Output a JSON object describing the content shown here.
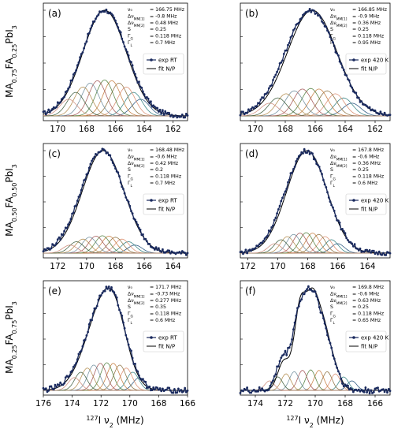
{
  "chart_data": [
    {
      "type": "line",
      "panel_label": "(a)",
      "xlim": [
        171,
        161
      ],
      "ticks": [
        170,
        168,
        166,
        164,
        162
      ],
      "params": [
        {
          "sym": "ν₀",
          "val": "= 166.75 MHz"
        },
        {
          "sym": "Δν_MM[1]",
          "val": "= -0.8 MHz"
        },
        {
          "sym": "Δν_MM[2]",
          "val": "= 0.48 MHz"
        },
        {
          "sym": "S",
          "val": "= 0.25"
        },
        {
          "sym": "Γ_G",
          "val": "= 0.118 MHz"
        },
        {
          "sym": "Γ_L",
          "val": "= 0.7 MHz"
        }
      ],
      "legend": {
        "exp": "exp RT",
        "fit": "fit N/P"
      },
      "series": [
        {
          "name": "exp RT",
          "kind": "points",
          "center": 167.0,
          "peaks": [
            [
              166.75,
              1.0,
              1.55
            ]
          ],
          "noise": 0.02
        },
        {
          "name": "fit N/P",
          "kind": "fit",
          "center": 167.0,
          "peaks": [
            [
              166.75,
              1.0,
              1.5
            ]
          ]
        }
      ],
      "components": {
        "center": 166.75,
        "height": 0.34,
        "width": 0.6,
        "spacing": 0.5,
        "count": 11
      }
    },
    {
      "type": "line",
      "panel_label": "(b)",
      "xlim": [
        171,
        161
      ],
      "ticks": [
        170,
        168,
        166,
        164,
        162
      ],
      "params": [
        {
          "sym": "ν₀",
          "val": "= 166.85 MHz"
        },
        {
          "sym": "Δν_MM[1]",
          "val": "= -0.9 MHz"
        },
        {
          "sym": "Δν_MM[2]",
          "val": "= 0.36 MHz"
        },
        {
          "sym": "S",
          "val": "= 0.25"
        },
        {
          "sym": "Γ_G",
          "val": "= 0.118 MHz"
        },
        {
          "sym": "Γ_L",
          "val": "= 0.95 MHz"
        }
      ],
      "legend": {
        "exp": "exp 420 K",
        "fit": "fit N/P"
      },
      "series": [
        {
          "name": "exp 420 K",
          "kind": "points",
          "center": 166.3,
          "peaks": [
            [
              166.3,
              1.0,
              1.7
            ]
          ],
          "noise": 0.02
        },
        {
          "name": "fit N/P",
          "kind": "fit",
          "center": 166.3,
          "peaks": [
            [
              166.2,
              1.0,
              1.65
            ]
          ]
        }
      ],
      "components": {
        "center": 166.3,
        "height": 0.26,
        "width": 0.6,
        "spacing": 0.55,
        "count": 11
      }
    },
    {
      "type": "line",
      "panel_label": "(c)",
      "xlim": [
        173,
        163
      ],
      "ticks": [
        172,
        170,
        168,
        166,
        164
      ],
      "params": [
        {
          "sym": "ν₀",
          "val": "= 168.48 MHz"
        },
        {
          "sym": "Δν_MM[1]",
          "val": "= -0.6 MHz"
        },
        {
          "sym": "Δν_MM[2]",
          "val": "= 0.42 MHz"
        },
        {
          "sym": "S",
          "val": "= 0.2"
        },
        {
          "sym": "Γ_G",
          "val": "= 0.118 MHz"
        },
        {
          "sym": "Γ_L",
          "val": "= 0.7 MHz"
        }
      ],
      "legend": {
        "exp": "exp RT",
        "fit": "fit N/P"
      },
      "series": [
        {
          "name": "exp RT",
          "kind": "points",
          "center": 168.9,
          "peaks": [
            [
              168.9,
              1.0,
              1.5
            ]
          ],
          "noise": 0.02
        },
        {
          "name": "fit N/P",
          "kind": "fit",
          "center": 168.9,
          "peaks": [
            [
              168.85,
              1.0,
              1.45
            ]
          ]
        }
      ],
      "components": {
        "center": 168.9,
        "height": 0.17,
        "width": 0.5,
        "spacing": 0.45,
        "count": 11
      }
    },
    {
      "type": "line",
      "panel_label": "(d)",
      "xlim": [
        172.5,
        162.5
      ],
      "ticks": [
        172,
        170,
        168,
        166,
        164
      ],
      "params": [
        {
          "sym": "ν₀",
          "val": "= 167.8 MHz"
        },
        {
          "sym": "Δν_MM[1]",
          "val": "= -0.6 MHz"
        },
        {
          "sym": "Δν_MM[2]",
          "val": "= 0.36 MHz"
        },
        {
          "sym": "S",
          "val": "= 0.25"
        },
        {
          "sym": "Γ_G",
          "val": "= 0.118 MHz"
        },
        {
          "sym": "Γ_L",
          "val": "= 0.6 MHz"
        }
      ],
      "legend": {
        "exp": "exp 420 K",
        "fit": "fit N/P"
      },
      "series": [
        {
          "name": "exp 420 K",
          "kind": "points",
          "center": 168.1,
          "peaks": [
            [
              168.1,
              1.0,
              1.4
            ]
          ],
          "noise": 0.02
        },
        {
          "name": "fit N/P",
          "kind": "fit",
          "center": 168.1,
          "peaks": [
            [
              168.05,
              1.0,
              1.35
            ]
          ]
        }
      ],
      "components": {
        "center": 168.1,
        "height": 0.2,
        "width": 0.45,
        "spacing": 0.42,
        "count": 11
      }
    },
    {
      "type": "line",
      "panel_label": "(e)",
      "xlim": [
        176,
        166
      ],
      "ticks": [
        176,
        174,
        172,
        170,
        168,
        166
      ],
      "params": [
        {
          "sym": "ν₀",
          "val": "= 171.7 MHz"
        },
        {
          "sym": "Δν_MM[1]",
          "val": "= -0.73 MHz"
        },
        {
          "sym": "Δν_MM[2]",
          "val": "= 0.277 MHz"
        },
        {
          "sym": "S",
          "val": "= 0.35"
        },
        {
          "sym": "Γ_G",
          "val": "= 0.118 MHz"
        },
        {
          "sym": "Γ_L",
          "val": "= 0.6 MHz"
        }
      ],
      "legend": {
        "exp": "exp RT",
        "fit": "fit N/P"
      },
      "series": [
        {
          "name": "exp RT",
          "kind": "points",
          "center": 172.0,
          "peaks": [
            [
              172.0,
              1.0,
              1.25
            ],
            [
              171.0,
              0.55,
              0.9
            ]
          ],
          "noise": 0.025
        },
        {
          "name": "fit N/P",
          "kind": "fit",
          "center": 172.0,
          "peaks": [
            [
              171.95,
              1.0,
              1.2
            ],
            [
              171.0,
              0.5,
              0.85
            ]
          ]
        }
      ],
      "components": {
        "center": 171.6,
        "height": 0.27,
        "width": 0.42,
        "spacing": 0.45,
        "count": 11
      }
    },
    {
      "type": "line",
      "panel_label": "(f)",
      "xlim": [
        175,
        165
      ],
      "ticks": [
        174,
        172,
        170,
        168,
        166
      ],
      "params": [
        {
          "sym": "ν₀",
          "val": "= 169.8 MHz"
        },
        {
          "sym": "Δν_MM[1]",
          "val": "= -0.6 MHz"
        },
        {
          "sym": "Δν_MM[2]",
          "val": "= 0.63 MHz"
        },
        {
          "sym": "S",
          "val": "= 0.25"
        },
        {
          "sym": "Γ_G",
          "val": "= 0.118 MHz"
        },
        {
          "sym": "Γ_L",
          "val": "= 0.65 MHz"
        }
      ],
      "legend": {
        "exp": "exp 420 K",
        "fit": "fit N/P"
      },
      "series": [
        {
          "name": "exp 420 K",
          "kind": "points",
          "center": 170.4,
          "peaks": [
            [
              171.1,
              1.0,
              0.45
            ],
            [
              170.3,
              0.98,
              0.42
            ],
            [
              169.6,
              0.7,
              0.45
            ],
            [
              172.2,
              0.42,
              0.4
            ],
            [
              168.9,
              0.35,
              0.5
            ]
          ],
          "noise": 0.03
        },
        {
          "name": "fit N/P",
          "kind": "fit",
          "center": 170.4,
          "peaks": [
            [
              171.0,
              1.0,
              0.4
            ],
            [
              170.2,
              0.95,
              0.4
            ],
            [
              169.5,
              0.65,
              0.42
            ],
            [
              172.1,
              0.35,
              0.4
            ],
            [
              168.8,
              0.28,
              0.45
            ]
          ]
        }
      ],
      "components": {
        "center": 170.3,
        "height": 0.2,
        "width": 0.32,
        "spacing": 0.55,
        "count": 11
      }
    }
  ],
  "row_ylabels": [
    {
      "pre": "MA",
      "sub1": "0.75",
      "mid": "FA",
      "sub2": "0.25",
      "post": "PbI",
      "sub3": "3"
    },
    {
      "pre": "MA",
      "sub1": "0.50",
      "mid": "FA",
      "sub2": "0.50",
      "post": "PbI",
      "sub3": "3"
    },
    {
      "pre": "MA",
      "sub1": "0.25",
      "mid": "FA",
      "sub2": "0.75",
      "post": "PbI",
      "sub3": "3"
    }
  ],
  "xlabel": {
    "sup": "127",
    "main": "I ν",
    "sub": "2",
    "unit": " (MHz)"
  },
  "component_colors": [
    "#1f4e79",
    "#2e7d7d",
    "#d98a6a",
    "#8a6d3b",
    "#c47a3a",
    "#4d7c3a",
    "#a05050",
    "#6a8a9a",
    "#b08a4a",
    "#3a5a3a",
    "#cc8877"
  ],
  "colors": {
    "exp": "#1a2a5e",
    "fit": "#000000",
    "grid": "#b0b0b0"
  }
}
